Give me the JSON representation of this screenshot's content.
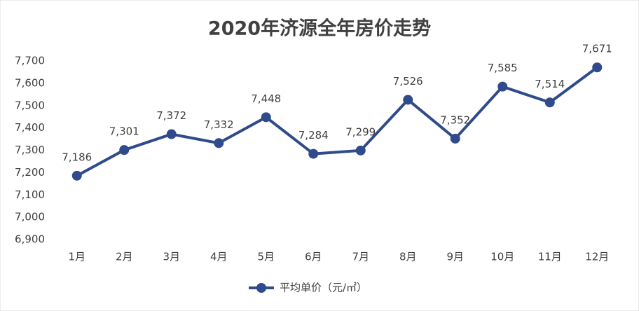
{
  "chart_data": {
    "type": "line",
    "title": "2020年济源全年房价走势",
    "categories": [
      "1月",
      "2月",
      "3月",
      "4月",
      "5月",
      "6月",
      "7月",
      "8月",
      "9月",
      "10月",
      "11月",
      "12月"
    ],
    "series": [
      {
        "name": "平均单价（元/㎡）",
        "color": "#2f4b8b",
        "values": [
          7186,
          7301,
          7372,
          7332,
          7448,
          7284,
          7299,
          7526,
          7352,
          7585,
          7514,
          7671
        ],
        "value_labels": [
          "7,186",
          "7,301",
          "7,372",
          "7,332",
          "7,448",
          "7,284",
          "7,299",
          "7,526",
          "7,352",
          "7,585",
          "7,514",
          "7,671"
        ]
      }
    ],
    "ylim": [
      6900,
      7700
    ],
    "yticks": [
      {
        "value": 6900,
        "label": "6,900"
      },
      {
        "value": 7000,
        "label": "7,000"
      },
      {
        "value": 7100,
        "label": "7,100"
      },
      {
        "value": 7200,
        "label": "7,200"
      },
      {
        "value": 7300,
        "label": "7,300"
      },
      {
        "value": 7400,
        "label": "7,400"
      },
      {
        "value": 7500,
        "label": "7,500"
      },
      {
        "value": 7600,
        "label": "7,600"
      },
      {
        "value": 7700,
        "label": "7,700"
      }
    ],
    "grid": false,
    "legend": "bottom"
  }
}
